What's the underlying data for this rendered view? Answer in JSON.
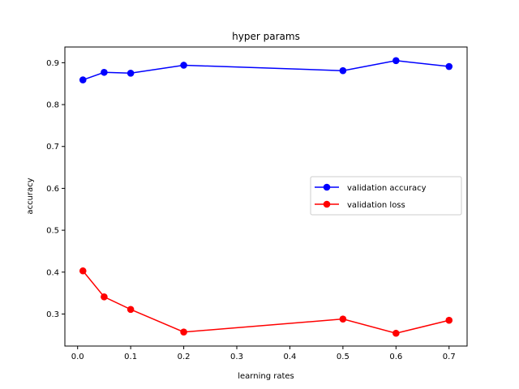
{
  "chart_data": {
    "type": "line",
    "title": "hyper params",
    "xlabel": "learning rates",
    "ylabel": "accuracy",
    "xlim": [
      -0.024,
      0.734
    ],
    "ylim": [
      0.2235,
      0.9375
    ],
    "xticks": [
      0.0,
      0.1,
      0.2,
      0.3,
      0.4,
      0.5,
      0.6,
      0.7
    ],
    "xtick_labels": [
      "0.0",
      "0.1",
      "0.2",
      "0.3",
      "0.4",
      "0.5",
      "0.6",
      "0.7"
    ],
    "yticks": [
      0.3,
      0.4,
      0.5,
      0.6,
      0.7,
      0.8,
      0.9
    ],
    "ytick_labels": [
      "0.3",
      "0.4",
      "0.5",
      "0.6",
      "0.7",
      "0.8",
      "0.9"
    ],
    "grid": false,
    "legend_position": "center-right",
    "x": [
      0.01,
      0.05,
      0.1,
      0.2,
      0.5,
      0.6,
      0.7
    ],
    "series": [
      {
        "name": "validation accuracy",
        "color": "#0000ff",
        "values": [
          0.859,
          0.877,
          0.875,
          0.894,
          0.881,
          0.905,
          0.891
        ]
      },
      {
        "name": "validation loss",
        "color": "#ff0000",
        "values": [
          0.403,
          0.341,
          0.311,
          0.257,
          0.288,
          0.254,
          0.285
        ]
      }
    ]
  }
}
